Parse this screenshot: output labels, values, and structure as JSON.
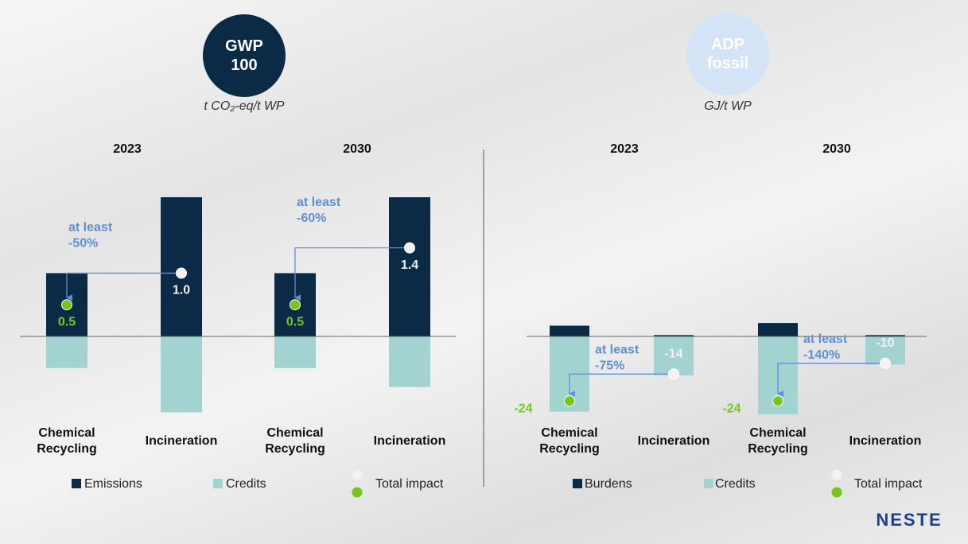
{
  "chart_data": [
    {
      "type": "bar",
      "title": "GWP 100",
      "subtitle": "t CO₂-eq/t WP",
      "groups": [
        "2023",
        "2030"
      ],
      "categories": [
        "Chemical Recycling",
        "Incineration",
        "Chemical Recycling",
        "Incineration"
      ],
      "series": [
        {
          "name": "Emissions",
          "color": "#0b2a45",
          "values": [
            1.0,
            2.2,
            1.0,
            2.2
          ]
        },
        {
          "name": "Credits",
          "color": "#a3d3d1",
          "values": [
            -0.5,
            -1.2,
            -0.5,
            -0.8
          ]
        },
        {
          "name": "Total impact",
          "colors": [
            "#77c61d",
            "#f2f2f2",
            "#77c61d",
            "#f2f2f2"
          ],
          "values": [
            0.5,
            1.0,
            0.5,
            1.4
          ],
          "value_labels": [
            "0.5",
            "1.0",
            "0.5",
            "1.4"
          ]
        }
      ],
      "annotations": [
        [
          "at least",
          "-50%"
        ],
        [
          "at least",
          "-60%"
        ]
      ]
    },
    {
      "type": "bar",
      "title": "ADP fossil",
      "subtitle": "GJ/t WP",
      "groups": [
        "2023",
        "2030"
      ],
      "categories": [
        "Chemical Recycling",
        "Incineration",
        "Chemical Recycling",
        "Incineration"
      ],
      "series": [
        {
          "name": "Burdens",
          "color": "#0b2a45",
          "values": [
            4,
            0.5,
            5,
            0.5
          ]
        },
        {
          "name": "Credits",
          "color": "#a3d3d1",
          "values": [
            -28,
            -14.5,
            -29,
            -10.5
          ]
        },
        {
          "name": "Total impact",
          "colors": [
            "#77c61d",
            "#f2f2f2",
            "#77c61d",
            "#f2f2f2"
          ],
          "values": [
            -24,
            -14,
            -24,
            -10
          ],
          "value_labels": [
            "-24",
            "-14",
            "-24",
            "-10"
          ]
        }
      ],
      "annotations": [
        [
          "at least",
          "-75%"
        ],
        [
          "at least",
          "-140%"
        ]
      ]
    }
  ],
  "logo": "NESTE"
}
